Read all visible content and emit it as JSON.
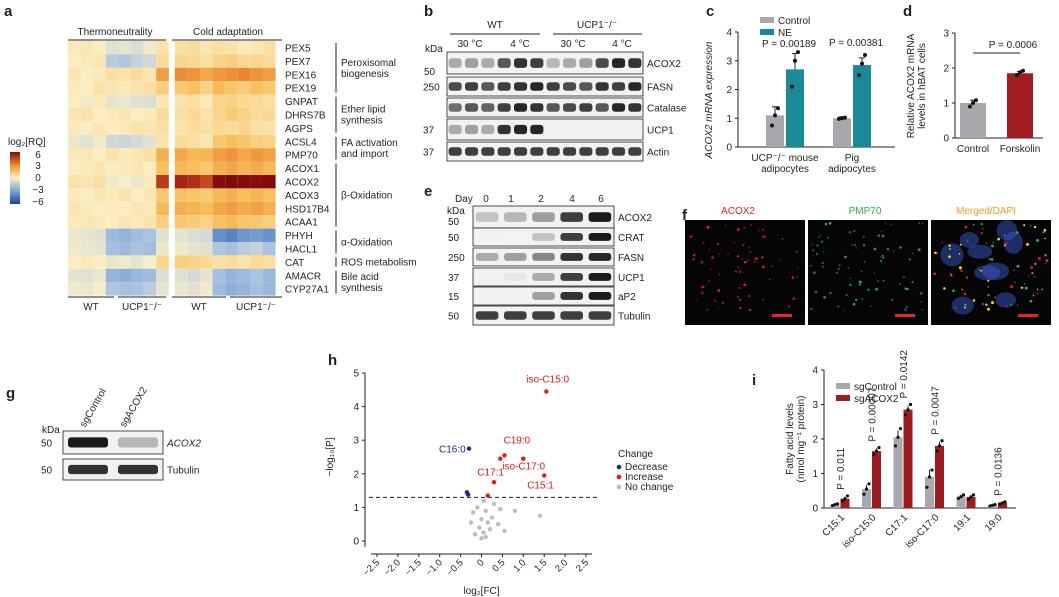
{
  "panels": {
    "a": {
      "label": "a",
      "group_labels": [
        "Thermoneutrality",
        "Cold adaptation"
      ],
      "bottom_labels": [
        "WT",
        "UCP1⁻/⁻",
        "WT",
        "UCP1⁻/⁻"
      ],
      "legend_title": "log₂[RQ]",
      "legend_ticks": [
        "6",
        "3",
        "0",
        "−3",
        "−6"
      ],
      "genes": [
        "PEX5",
        "PEX7",
        "PEX16",
        "PEX19",
        "GNPAT",
        "DHRS7B",
        "AGPS",
        "ACSL4",
        "PMP70",
        "ACOX1",
        "ACOX2",
        "ACOX3",
        "HSD17B4",
        "ACAA1",
        "PHYH",
        "HACL1",
        "CAT",
        "AMACR",
        "CYP27A1"
      ],
      "categories": [
        {
          "lines": [
            "Peroxisomal",
            "biogenesis"
          ],
          "start": 0,
          "end": 3
        },
        {
          "lines": [
            "Ether lipid",
            "synthesis"
          ],
          "start": 4,
          "end": 6
        },
        {
          "lines": [
            "FA activation",
            "and import"
          ],
          "start": 7,
          "end": 8
        },
        {
          "lines": [
            "β-Oxidation"
          ],
          "start": 9,
          "end": 13
        },
        {
          "lines": [
            "α-Oxidation"
          ],
          "start": 14,
          "end": 15
        },
        {
          "lines": [
            "ROS metabolism"
          ],
          "start": 16,
          "end": 16
        },
        {
          "lines": [
            "Bile acid",
            "synthesis"
          ],
          "start": 17,
          "end": 18
        }
      ],
      "matrix": [
        [
          0.2,
          0.3,
          0.1,
          -0.5,
          -0.4,
          -0.6,
          -0.2,
          0.4,
          0.5,
          0.6,
          0.3,
          0.5,
          0.4,
          0.2,
          0.3,
          0.5
        ],
        [
          0.1,
          0.2,
          0.3,
          -1.2,
          -1.4,
          -1.0,
          -0.8,
          0.6,
          0.8,
          0.7,
          0.5,
          0.9,
          1.0,
          0.7,
          0.8,
          0.6
        ],
        [
          0.3,
          0.1,
          0.2,
          0.5,
          0.4,
          0.6,
          0.3,
          2.2,
          2.6,
          2.4,
          2.0,
          2.3,
          2.5,
          2.7,
          2.4,
          2.2
        ],
        [
          0.2,
          0.1,
          0.4,
          0.3,
          0.2,
          0.4,
          0.5,
          1.0,
          1.2,
          1.4,
          0.9,
          1.6,
          1.3,
          1.1,
          1.4,
          1.2
        ],
        [
          0.1,
          -0.2,
          0.2,
          -0.4,
          -0.3,
          -0.5,
          -0.6,
          0.3,
          0.4,
          0.5,
          0.2,
          0.8,
          0.9,
          0.7,
          0.6,
          0.5
        ],
        [
          0.3,
          0.4,
          0.1,
          0.2,
          0.3,
          0.1,
          0.2,
          0.6,
          0.5,
          0.7,
          0.4,
          0.8,
          1.1,
          0.9,
          0.6,
          0.7
        ],
        [
          0.2,
          0.1,
          0.3,
          0.1,
          0.2,
          0.4,
          0.3,
          0.5,
          0.4,
          0.6,
          0.5,
          0.7,
          0.6,
          0.8,
          0.5,
          0.4
        ],
        [
          -0.3,
          -0.5,
          -0.2,
          -0.8,
          -0.9,
          -0.7,
          -0.5,
          0.4,
          0.6,
          0.5,
          0.3,
          1.2,
          1.5,
          1.3,
          1.0,
          0.9
        ],
        [
          0.2,
          0.3,
          0.1,
          0.4,
          0.2,
          0.3,
          0.5,
          1.8,
          2.0,
          1.6,
          1.7,
          2.2,
          2.4,
          2.0,
          2.3,
          2.1
        ],
        [
          0.1,
          0.2,
          0.3,
          0.1,
          0.2,
          0.3,
          0.1,
          1.4,
          1.6,
          1.5,
          1.2,
          1.8,
          2.0,
          1.7,
          1.9,
          1.6
        ],
        [
          0.4,
          0.3,
          0.5,
          -0.2,
          -0.1,
          -0.3,
          0.2,
          4.0,
          4.4,
          4.2,
          3.8,
          5.8,
          6.0,
          5.9,
          5.7,
          5.9
        ],
        [
          0.2,
          0.1,
          0.3,
          0.2,
          0.4,
          0.1,
          0.3,
          1.2,
          1.4,
          1.3,
          1.1,
          1.6,
          1.8,
          1.5,
          1.7,
          1.4
        ],
        [
          0.3,
          0.2,
          0.1,
          0.2,
          0.1,
          0.3,
          0.2,
          1.6,
          1.8,
          1.7,
          1.5,
          2.0,
          2.2,
          1.9,
          2.1,
          1.8
        ],
        [
          0.2,
          0.3,
          0.2,
          0.1,
          0.3,
          0.2,
          0.4,
          1.0,
          1.2,
          1.1,
          0.9,
          1.4,
          1.6,
          1.3,
          1.2,
          1.0
        ],
        [
          -0.3,
          -0.4,
          -0.5,
          -1.8,
          -2.0,
          -1.7,
          -1.5,
          -0.5,
          -0.4,
          -0.6,
          -0.7,
          -3.2,
          -3.5,
          -3.0,
          -2.8,
          -3.1
        ],
        [
          -0.2,
          -0.3,
          -0.4,
          -1.6,
          -1.8,
          -1.5,
          -1.7,
          -0.3,
          -0.2,
          -0.4,
          -0.5,
          -1.4,
          -1.6,
          -1.2,
          -1.0,
          -1.5
        ],
        [
          0.1,
          0.2,
          0.1,
          -0.3,
          -0.2,
          -0.4,
          -0.1,
          0.8,
          1.0,
          0.9,
          0.7,
          0.5,
          0.6,
          0.4,
          0.7,
          0.5
        ],
        [
          -0.4,
          -0.5,
          -0.3,
          -2.0,
          -2.2,
          -1.9,
          -1.8,
          -0.6,
          -0.5,
          -0.7,
          -0.4,
          -1.6,
          -2.0,
          -1.8,
          -1.5,
          -1.9
        ],
        [
          -0.2,
          -0.3,
          -0.1,
          -1.4,
          -1.6,
          -1.5,
          -1.2,
          -0.4,
          -0.3,
          -0.5,
          -0.2,
          -1.8,
          -2.2,
          -2.0,
          -1.6,
          -1.9
        ]
      ]
    },
    "b": {
      "label": "b",
      "groups": [
        "WT",
        "UCP1⁻/⁻"
      ],
      "temps": [
        "30 °C",
        "4 °C",
        "30 °C",
        "4 °C"
      ],
      "kda_title": "kDa",
      "blots": [
        {
          "name": "ACOX2",
          "kda": "",
          "intensity": [
            0.35,
            0.4,
            0.35,
            0.7,
            0.85,
            0.8,
            0.3,
            0.35,
            0.4,
            0.75,
            0.9,
            0.85
          ]
        },
        {
          "name": "FASN",
          "kda": "250",
          "intensity": [
            0.75,
            0.8,
            0.7,
            0.8,
            0.85,
            0.9,
            0.8,
            0.75,
            0.7,
            0.85,
            0.8,
            0.9
          ]
        },
        {
          "name": "Catalase",
          "kda": "",
          "intensity": [
            0.6,
            0.7,
            0.65,
            0.8,
            0.9,
            0.85,
            0.7,
            0.75,
            0.8,
            0.7,
            0.9,
            0.85
          ]
        },
        {
          "name": "UCP1",
          "kda": "37",
          "intensity": [
            0.35,
            0.4,
            0.35,
            0.85,
            0.9,
            0.9,
            0,
            0,
            0,
            0,
            0,
            0
          ]
        },
        {
          "name": "Actin",
          "kda": "37",
          "intensity": [
            0.8,
            0.8,
            0.8,
            0.8,
            0.8,
            0.8,
            0.8,
            0.8,
            0.8,
            0.8,
            0.8,
            0.8
          ]
        }
      ],
      "marker_50": "50"
    },
    "c": {
      "label": "c",
      "legend": [
        "Control",
        "NE"
      ],
      "ylabel": "ACOX2 mRNA expression",
      "yticks": [
        "0",
        "1",
        "2",
        "3",
        "4"
      ],
      "groups": [
        {
          "lines": [
            "UCP⁻/⁻ mouse",
            "adipocytes"
          ],
          "control": 1.1,
          "ne": 2.7,
          "control_err": 0.3,
          "ne_err": 0.55,
          "pval": "P = 0.00189",
          "control_pts": [
            0.75,
            1.1,
            1.35
          ],
          "ne_pts": [
            2.1,
            3.0,
            3.3
          ]
        },
        {
          "lines": [
            "Pig",
            "adipocytes"
          ],
          "control": 1.0,
          "ne": 2.85,
          "control_err": 0.05,
          "ne_err": 0.25,
          "pval": "P = 0.00381",
          "control_pts": [
            0.98,
            1.0,
            1.02
          ],
          "ne_pts": [
            2.5,
            2.9,
            3.2
          ]
        }
      ]
    },
    "d": {
      "label": "d",
      "ylabel_lines": [
        "Relative ACOX2 mRNA",
        "levels in hBAT cells"
      ],
      "yticks": [
        "0",
        "1",
        "2",
        "3"
      ],
      "bars": [
        {
          "name": "Control",
          "value": 1.0,
          "err": 0.08,
          "pts": [
            0.9,
            1.0,
            1.08
          ]
        },
        {
          "name": "Forskolin",
          "value": 1.85,
          "err": 0.05,
          "pts": [
            1.8,
            1.88,
            1.92
          ]
        }
      ],
      "pval": "P = 0.0006"
    },
    "e": {
      "label": "e",
      "day_title": "Day",
      "days": [
        "0",
        "1",
        "2",
        "4",
        "6"
      ],
      "kda_title": "kDa",
      "blots": [
        {
          "name": "ACOX2",
          "kda": "",
          "intensity": [
            0.25,
            0.3,
            0.4,
            0.8,
            0.95
          ]
        },
        {
          "name": "CRAT",
          "kda": "50",
          "intensity": [
            0,
            0.05,
            0.25,
            0.8,
            0.95
          ]
        },
        {
          "name": "FASN",
          "kda": "250",
          "intensity": [
            0.35,
            0.4,
            0.5,
            0.85,
            0.9
          ]
        },
        {
          "name": "UCP1",
          "kda": "37",
          "intensity": [
            0,
            0.1,
            0.35,
            0.8,
            0.95
          ]
        },
        {
          "name": "aP2",
          "kda": "15",
          "intensity": [
            0,
            0,
            0.4,
            0.85,
            0.95
          ]
        },
        {
          "name": "Tubulin",
          "kda": "50",
          "intensity": [
            0.8,
            0.8,
            0.8,
            0.8,
            0.8
          ]
        }
      ],
      "marker_50": "50"
    },
    "f": {
      "label": "f",
      "titles": [
        "ACOX2",
        "PMP70",
        "Merged/DAPI"
      ],
      "title_colors": [
        "#e8242b",
        "#2bb34a",
        "#f39c1f"
      ],
      "dapi_color": "#3a55c8"
    },
    "g": {
      "label": "g",
      "lanes": [
        "sgControl",
        "sgACOX2"
      ],
      "kda_title": "kDa",
      "blots": [
        {
          "name": "ACOX2",
          "kda": "50",
          "intensity": [
            0.95,
            0.3
          ]
        },
        {
          "name": "Tubulin",
          "kda": "50",
          "intensity": [
            0.85,
            0.85
          ]
        }
      ]
    },
    "h": {
      "label": "h",
      "xlabel": "log₂[FC]",
      "ylabel": "−log₁₀[P]",
      "xticks": [
        "−2.5",
        "−2.0",
        "−1.5",
        "−1.0",
        "−0.5",
        "0",
        "0.5",
        "1.0",
        "1.5",
        "2.0",
        "2.5"
      ],
      "yticks": [
        "0",
        "1",
        "2",
        "3",
        "4",
        "5"
      ],
      "legend_title": "Change",
      "legend": [
        {
          "name": "Decrease",
          "color": "#1b2a8a"
        },
        {
          "name": "Increase",
          "color": "#e31a1c"
        },
        {
          "name": "No change",
          "color": "#bdbdbd"
        }
      ],
      "threshold": 1.3,
      "labels": [
        {
          "text": "iso-C15:0",
          "x": 1.55,
          "y": 4.45,
          "color": "#e31a1c"
        },
        {
          "text": "C16:0",
          "x": -0.3,
          "y": 2.75,
          "color": "#1b2a8a"
        },
        {
          "text": "C19:0",
          "x": 0.55,
          "y": 2.55,
          "color": "#e31a1c"
        },
        {
          "text": "C17:1",
          "x": 0.45,
          "y": 2.3,
          "color": "#e31a1c"
        },
        {
          "text": "iso-C17:0",
          "x": 1.0,
          "y": 2.45,
          "color": "#e31a1c"
        },
        {
          "text": "C15:1",
          "x": 1.5,
          "y": 1.95,
          "color": "#e31a1c"
        }
      ],
      "points": [
        {
          "x": 1.55,
          "y": 4.45,
          "c": "inc"
        },
        {
          "x": -0.3,
          "y": 2.75,
          "c": "dec"
        },
        {
          "x": 0.55,
          "y": 2.55,
          "c": "inc"
        },
        {
          "x": 0.45,
          "y": 2.45,
          "c": "inc"
        },
        {
          "x": 1.0,
          "y": 2.45,
          "c": "inc"
        },
        {
          "x": 1.5,
          "y": 1.95,
          "c": "inc"
        },
        {
          "x": 0.3,
          "y": 1.75,
          "c": "inc"
        },
        {
          "x": 0.15,
          "y": 1.35,
          "c": "inc"
        },
        {
          "x": -0.35,
          "y": 1.45,
          "c": "dec"
        },
        {
          "x": -0.32,
          "y": 1.38,
          "c": "dec"
        },
        {
          "x": 0.05,
          "y": 1.2,
          "c": "nc"
        },
        {
          "x": 0.3,
          "y": 1.1,
          "c": "nc"
        },
        {
          "x": -0.1,
          "y": 1.0,
          "c": "nc"
        },
        {
          "x": 0.1,
          "y": 0.9,
          "c": "nc"
        },
        {
          "x": 0.45,
          "y": 0.95,
          "c": "nc"
        },
        {
          "x": -0.2,
          "y": 0.85,
          "c": "nc"
        },
        {
          "x": 0.8,
          "y": 0.9,
          "c": "nc"
        },
        {
          "x": 1.4,
          "y": 0.75,
          "c": "nc"
        },
        {
          "x": 0.25,
          "y": 0.7,
          "c": "nc"
        },
        {
          "x": 0.0,
          "y": 0.65,
          "c": "nc"
        },
        {
          "x": 0.15,
          "y": 0.55,
          "c": "nc"
        },
        {
          "x": 0.4,
          "y": 0.5,
          "c": "nc"
        },
        {
          "x": -0.05,
          "y": 0.4,
          "c": "nc"
        },
        {
          "x": 0.2,
          "y": 0.35,
          "c": "nc"
        },
        {
          "x": 0.05,
          "y": 0.25,
          "c": "nc"
        },
        {
          "x": -0.15,
          "y": 0.2,
          "c": "nc"
        },
        {
          "x": 0.1,
          "y": 0.12,
          "c": "nc"
        },
        {
          "x": 0.0,
          "y": 0.08,
          "c": "nc"
        },
        {
          "x": 0.55,
          "y": 0.3,
          "c": "nc"
        },
        {
          "x": -0.25,
          "y": 0.55,
          "c": "nc"
        }
      ]
    },
    "i": {
      "label": "i",
      "legend": [
        "sgControl",
        "sgACOX2"
      ],
      "ylabel_lines": [
        "Fatty acid levels",
        "(nmol mg⁻¹ protein)"
      ],
      "yticks": [
        "0",
        "1",
        "2",
        "3",
        "4"
      ],
      "groups": [
        {
          "name": "C15:1",
          "ctrl": 0.1,
          "sg": 0.27,
          "pval": "P = 0.011",
          "ctrl_pts": [
            0.07,
            0.1,
            0.12
          ],
          "sg_pts": [
            0.2,
            0.27,
            0.35
          ]
        },
        {
          "name": "iso-C15:0",
          "ctrl": 0.55,
          "sg": 1.65,
          "pval": "P = 0.00007",
          "ctrl_pts": [
            0.4,
            0.55,
            0.7
          ],
          "sg_pts": [
            1.55,
            1.65,
            1.75
          ]
        },
        {
          "name": "C17:1",
          "ctrl": 2.05,
          "sg": 2.85,
          "pval": "P = 0.0142",
          "ctrl_pts": [
            1.8,
            2.05,
            2.3
          ],
          "sg_pts": [
            2.7,
            2.85,
            3.0
          ]
        },
        {
          "name": "iso-C17:0",
          "ctrl": 0.9,
          "sg": 1.8,
          "pval": "P = 0.0047",
          "ctrl_pts": [
            0.6,
            0.9,
            1.1
          ],
          "sg_pts": [
            1.65,
            1.8,
            1.95
          ]
        },
        {
          "name": "19:1",
          "ctrl": 0.33,
          "sg": 0.32,
          "pval": "",
          "ctrl_pts": [
            0.28,
            0.33,
            0.38
          ],
          "sg_pts": [
            0.25,
            0.32,
            0.38
          ]
        },
        {
          "name": "19:0",
          "ctrl": 0.08,
          "sg": 0.15,
          "pval": "P = 0.0136",
          "ctrl_pts": [
            0.06,
            0.08,
            0.1
          ],
          "sg_pts": [
            0.12,
            0.15,
            0.18
          ]
        }
      ],
      "colors": {
        "ctrl": "#a7a9ac",
        "sg": "#9e1b20"
      }
    }
  },
  "colors": {
    "teal": "#1a8a99",
    "grey": "#a7a9ac",
    "darkred": "#a11d21"
  }
}
